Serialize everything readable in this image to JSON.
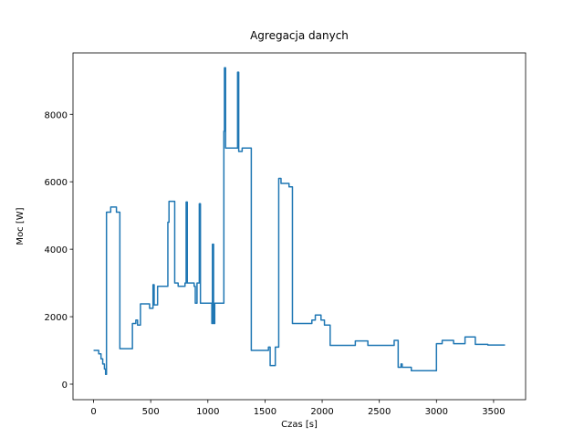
{
  "chart_data": {
    "type": "line",
    "title": "Agregacja danych",
    "xlabel": "Czas [s]",
    "ylabel": "Moc [W]",
    "color": "#1f77b4",
    "x": [
      0,
      45,
      45,
      65,
      65,
      80,
      80,
      95,
      95,
      105,
      105,
      113,
      113,
      150,
      150,
      200,
      200,
      230,
      230,
      340,
      340,
      370,
      370,
      385,
      385,
      410,
      410,
      490,
      490,
      520,
      520,
      530,
      530,
      560,
      560,
      650,
      650,
      660,
      660,
      710,
      710,
      740,
      740,
      800,
      800,
      810,
      810,
      820,
      820,
      880,
      880,
      890,
      890,
      905,
      905,
      925,
      925,
      935,
      935,
      1035,
      1035,
      1040,
      1040,
      1050,
      1050,
      1060,
      1060,
      1140,
      1140,
      1145,
      1145,
      1155,
      1155,
      1260,
      1260,
      1270,
      1270,
      1300,
      1300,
      1380,
      1380,
      1530,
      1530,
      1545,
      1545,
      1590,
      1590,
      1620,
      1620,
      1640,
      1640,
      1710,
      1710,
      1740,
      1740,
      1910,
      1910,
      1940,
      1940,
      1990,
      1990,
      2020,
      2020,
      2070,
      2070,
      2290,
      2290,
      2400,
      2400,
      2630,
      2630,
      2665,
      2665,
      2690,
      2690,
      2700,
      2700,
      2780,
      2780,
      3000,
      3000,
      3050,
      3050,
      3150,
      3150,
      3250,
      3250,
      3340,
      3340,
      3450,
      3450,
      3600
    ],
    "values": [
      1000,
      1000,
      900,
      900,
      750,
      750,
      600,
      600,
      450,
      450,
      290,
      290,
      5100,
      5100,
      5250,
      5250,
      5100,
      5100,
      1050,
      1050,
      1800,
      1800,
      1900,
      1900,
      1750,
      1750,
      2380,
      2380,
      2250,
      2250,
      2950,
      2950,
      2350,
      2350,
      2900,
      2900,
      4800,
      4800,
      5420,
      5420,
      3000,
      3000,
      2900,
      2900,
      3000,
      3000,
      5400,
      5400,
      3000,
      3000,
      2900,
      2900,
      2400,
      2400,
      3000,
      3000,
      5350,
      5350,
      2400,
      2400,
      1800,
      1800,
      4150,
      4150,
      1800,
      1800,
      2400,
      2400,
      7500,
      7500,
      9380,
      9380,
      7000,
      7000,
      9250,
      9250,
      6900,
      6900,
      7000,
      7000,
      1000,
      1000,
      1100,
      1100,
      550,
      550,
      1100,
      1100,
      6100,
      6100,
      5950,
      5950,
      5850,
      5850,
      1800,
      1800,
      1900,
      1900,
      2050,
      2050,
      1900,
      1900,
      1750,
      1750,
      1150,
      1150,
      1280,
      1280,
      1150,
      1150,
      1300,
      1300,
      500,
      500,
      600,
      600,
      500,
      500,
      400,
      400,
      1200,
      1200,
      1300,
      1300,
      1200,
      1200,
      1400,
      1400,
      1180,
      1180,
      1160,
      1160
    ],
    "xlim": [
      -180,
      3780
    ],
    "ylim": [
      -460,
      9820
    ],
    "xticks": [
      0,
      500,
      1000,
      1500,
      2000,
      2500,
      3000,
      3500
    ],
    "yticks": [
      0,
      2000,
      4000,
      6000,
      8000
    ]
  }
}
